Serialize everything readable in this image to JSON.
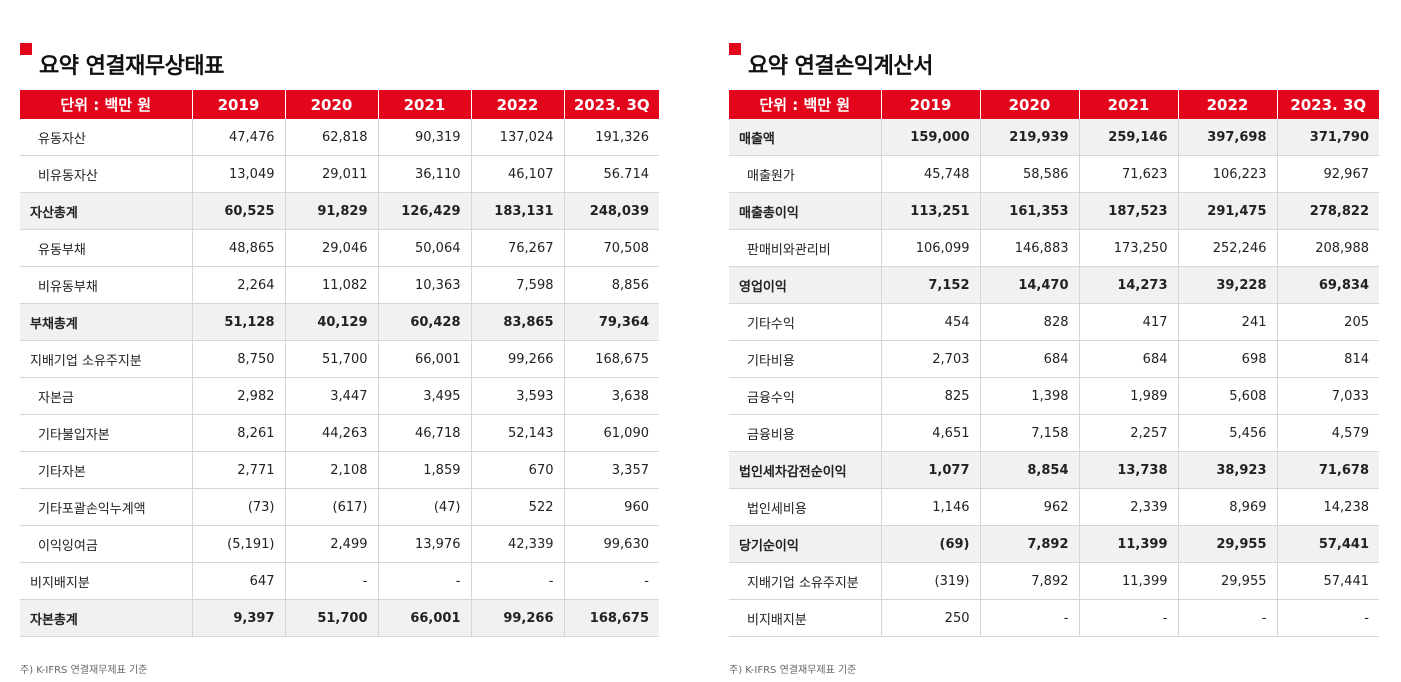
{
  "balance": {
    "title": "요약 연결재무상태표",
    "headers": [
      "단위 : 백만 원",
      "2019",
      "2020",
      "2021",
      "2022",
      "2023. 3Q"
    ],
    "rows": [
      {
        "label": "유동자산",
        "bold": false,
        "indent": true,
        "values": [
          "47,476",
          "62,818",
          "90,319",
          "137,024",
          "191,326"
        ]
      },
      {
        "label": "비유동자산",
        "bold": false,
        "indent": true,
        "values": [
          "13,049",
          "29,011",
          "36,110",
          "46,107",
          "56.714"
        ]
      },
      {
        "label": "자산총계",
        "bold": true,
        "indent": false,
        "values": [
          "60,525",
          "91,829",
          "126,429",
          "183,131",
          "248,039"
        ]
      },
      {
        "label": "유동부채",
        "bold": false,
        "indent": true,
        "values": [
          "48,865",
          "29,046",
          "50,064",
          "76,267",
          "70,508"
        ]
      },
      {
        "label": "비유동부채",
        "bold": false,
        "indent": true,
        "values": [
          "2,264",
          "11,082",
          "10,363",
          "7,598",
          "8,856"
        ]
      },
      {
        "label": "부채총계",
        "bold": true,
        "indent": false,
        "values": [
          "51,128",
          "40,129",
          "60,428",
          "83,865",
          "79,364"
        ]
      },
      {
        "label": "지배기업 소유주지분",
        "bold": false,
        "indent": false,
        "values": [
          "8,750",
          "51,700",
          "66,001",
          "99,266",
          "168,675"
        ]
      },
      {
        "label": "자본금",
        "bold": false,
        "indent": true,
        "values": [
          "2,982",
          "3,447",
          "3,495",
          "3,593",
          "3,638"
        ]
      },
      {
        "label": "기타불입자본",
        "bold": false,
        "indent": true,
        "values": [
          "8,261",
          "44,263",
          "46,718",
          "52,143",
          "61,090"
        ]
      },
      {
        "label": "기타자본",
        "bold": false,
        "indent": true,
        "values": [
          "2,771",
          "2,108",
          "1,859",
          "670",
          "3,357"
        ]
      },
      {
        "label": "기타포괄손익누계액",
        "bold": false,
        "indent": true,
        "values": [
          "(73)",
          "(617)",
          "(47)",
          "522",
          "960"
        ]
      },
      {
        "label": "이익잉여금",
        "bold": false,
        "indent": true,
        "values": [
          "(5,191)",
          "2,499",
          "13,976",
          "42,339",
          "99,630"
        ]
      },
      {
        "label": "비지배지분",
        "bold": false,
        "indent": false,
        "values": [
          "647",
          "-",
          "-",
          "-",
          "-"
        ]
      },
      {
        "label": "자본총계",
        "bold": true,
        "indent": false,
        "values": [
          "9,397",
          "51,700",
          "66,001",
          "99,266",
          "168,675"
        ]
      }
    ],
    "note": "주) K-IFRS 연결재무제표 기준"
  },
  "income": {
    "title": "요약 연결손익계산서",
    "headers": [
      "단위 : 백만 원",
      "2019",
      "2020",
      "2021",
      "2022",
      "2023. 3Q"
    ],
    "rows": [
      {
        "label": "매출액",
        "bold": true,
        "indent": false,
        "values": [
          "159,000",
          "219,939",
          "259,146",
          "397,698",
          "371,790"
        ]
      },
      {
        "label": "매출원가",
        "bold": false,
        "indent": true,
        "values": [
          "45,748",
          "58,586",
          "71,623",
          "106,223",
          "92,967"
        ]
      },
      {
        "label": "매출총이익",
        "bold": true,
        "indent": false,
        "values": [
          "113,251",
          "161,353",
          "187,523",
          "291,475",
          "278,822"
        ]
      },
      {
        "label": "판매비와관리비",
        "bold": false,
        "indent": true,
        "values": [
          "106,099",
          "146,883",
          "173,250",
          "252,246",
          "208,988"
        ]
      },
      {
        "label": "영업이익",
        "bold": true,
        "indent": false,
        "values": [
          "7,152",
          "14,470",
          "14,273",
          "39,228",
          "69,834"
        ]
      },
      {
        "label": "기타수익",
        "bold": false,
        "indent": true,
        "values": [
          "454",
          "828",
          "417",
          "241",
          "205"
        ]
      },
      {
        "label": "기타비용",
        "bold": false,
        "indent": true,
        "values": [
          "2,703",
          "684",
          "684",
          "698",
          "814"
        ]
      },
      {
        "label": "금융수익",
        "bold": false,
        "indent": true,
        "values": [
          "825",
          "1,398",
          "1,989",
          "5,608",
          "7,033"
        ]
      },
      {
        "label": "금융비용",
        "bold": false,
        "indent": true,
        "values": [
          "4,651",
          "7,158",
          "2,257",
          "5,456",
          "4,579"
        ]
      },
      {
        "label": "법인세차감전순이익",
        "bold": true,
        "indent": false,
        "values": [
          "1,077",
          "8,854",
          "13,738",
          "38,923",
          "71,678"
        ]
      },
      {
        "label": "법인세비용",
        "bold": false,
        "indent": true,
        "values": [
          "1,146",
          "962",
          "2,339",
          "8,969",
          "14,238"
        ]
      },
      {
        "label": "당기순이익",
        "bold": true,
        "indent": false,
        "values": [
          "(69)",
          "7,892",
          "11,399",
          "29,955",
          "57,441"
        ]
      },
      {
        "label": "지배기업 소유주지분",
        "bold": false,
        "indent": true,
        "values": [
          "(319)",
          "7,892",
          "11,399",
          "29,955",
          "57,441"
        ]
      },
      {
        "label": "비지배지분",
        "bold": false,
        "indent": true,
        "values": [
          "250",
          "-",
          "-",
          "-",
          "-"
        ]
      }
    ],
    "note": "주) K-IFRS 연결재무제표 기준"
  },
  "colors": {
    "accent": "#e3051b",
    "bold_row_bg": "#f1f1f1",
    "border": "#d6d6d6"
  }
}
